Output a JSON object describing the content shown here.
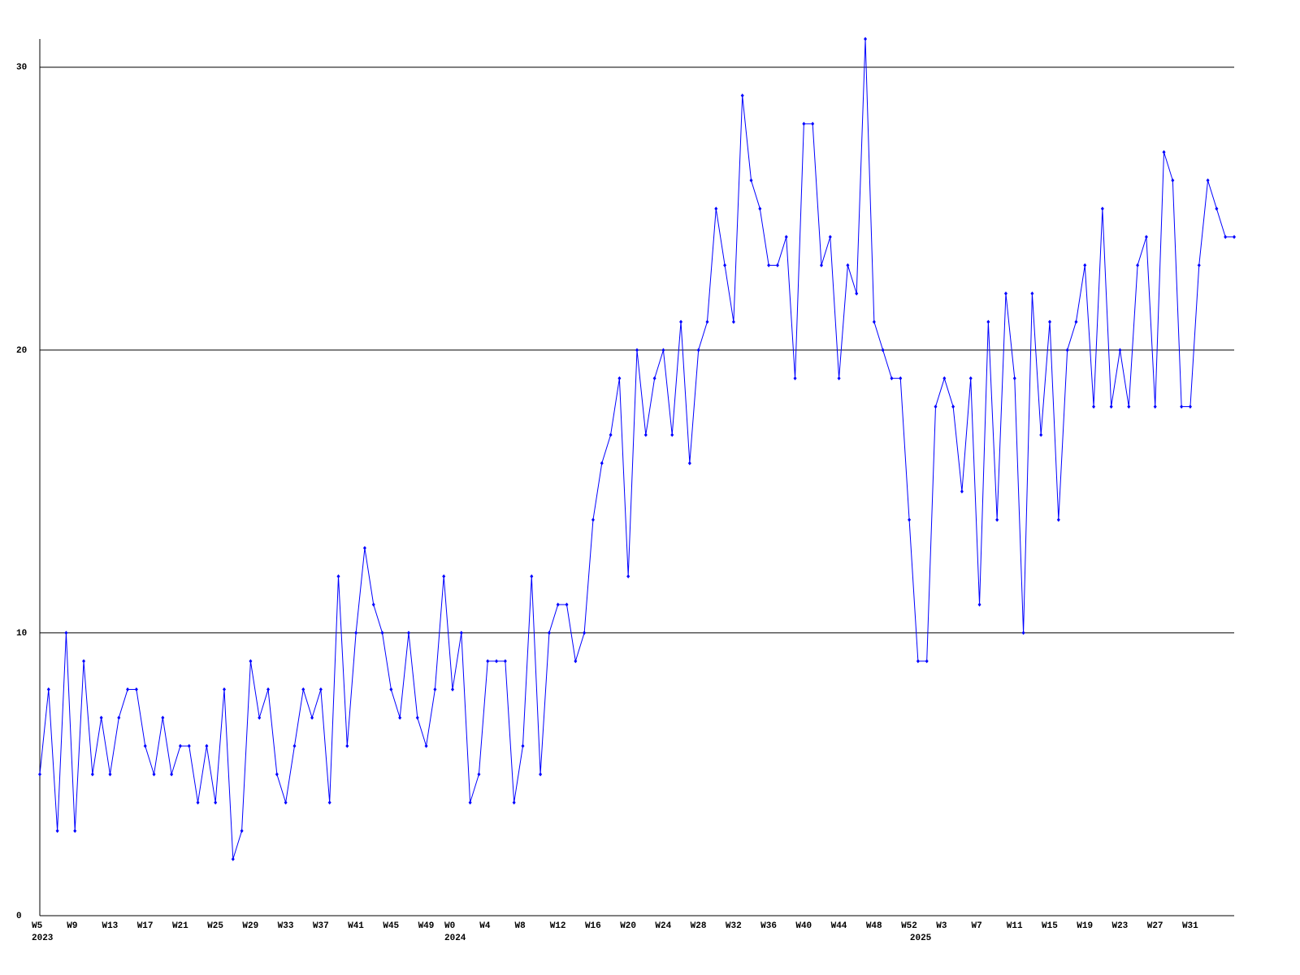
{
  "chart_data": {
    "type": "line",
    "categories": [
      "W5",
      null,
      null,
      null,
      "W9",
      null,
      null,
      null,
      "W13",
      null,
      null,
      null,
      "W17",
      null,
      null,
      null,
      "W21",
      null,
      null,
      null,
      "W25",
      null,
      null,
      null,
      "W29",
      null,
      null,
      null,
      "W33",
      null,
      null,
      null,
      "W37",
      null,
      null,
      null,
      "W41",
      null,
      null,
      null,
      "W45",
      null,
      null,
      null,
      "W49",
      null,
      null,
      "W0",
      null,
      null,
      null,
      "W4",
      null,
      null,
      null,
      "W8",
      null,
      null,
      null,
      "W12",
      null,
      null,
      null,
      "W16",
      null,
      null,
      null,
      "W20",
      null,
      null,
      null,
      "W24",
      null,
      null,
      null,
      "W28",
      null,
      null,
      null,
      "W32",
      null,
      null,
      null,
      "W36",
      null,
      null,
      null,
      "W40",
      null,
      null,
      null,
      "W44",
      null,
      null,
      null,
      "W48",
      null,
      null,
      null,
      "W52",
      null,
      null,
      null,
      "W3",
      null,
      null,
      null,
      "W7",
      null,
      null,
      null,
      "W11",
      null,
      null,
      null,
      "W15",
      null,
      null,
      null,
      "W19",
      null,
      null,
      null,
      "W23",
      null,
      null,
      null,
      "W27",
      null,
      null,
      null,
      "W31",
      null,
      null,
      null,
      null,
      null
    ],
    "year_labels": [
      "2023",
      null,
      null,
      null,
      null,
      null,
      null,
      null,
      null,
      null,
      null,
      null,
      null,
      null,
      null,
      null,
      null,
      null,
      null,
      null,
      null,
      null,
      null,
      null,
      null,
      null,
      null,
      null,
      null,
      null,
      null,
      null,
      null,
      null,
      null,
      null,
      null,
      null,
      null,
      null,
      null,
      null,
      null,
      null,
      null,
      null,
      null,
      "2024",
      null,
      null,
      null,
      null,
      null,
      null,
      null,
      null,
      null,
      null,
      null,
      null,
      null,
      null,
      null,
      null,
      null,
      null,
      null,
      null,
      null,
      null,
      null,
      null,
      null,
      null,
      null,
      null,
      null,
      null,
      null,
      null,
      null,
      null,
      null,
      null,
      null,
      null,
      null,
      null,
      null,
      null,
      null,
      null,
      null,
      null,
      null,
      null,
      null,
      null,
      null,
      null,
      "2025",
      null,
      null,
      null,
      null,
      null,
      null,
      null,
      null,
      null,
      null,
      null,
      null,
      null,
      null,
      null,
      null,
      null,
      null,
      null,
      null,
      null,
      null,
      null,
      null,
      null,
      null,
      null,
      null,
      null,
      null,
      null,
      null,
      null,
      null,
      null,
      null
    ],
    "series": [
      {
        "color": "#0000ff",
        "values": [
          5,
          8,
          3,
          10,
          3,
          9,
          5,
          7,
          5,
          7,
          8,
          8,
          6,
          5,
          7,
          5,
          6,
          6,
          4,
          6,
          4,
          8,
          2,
          3,
          9,
          7,
          8,
          5,
          4,
          6,
          8,
          7,
          8,
          4,
          12,
          6,
          10,
          13,
          11,
          10,
          8,
          7,
          10,
          7,
          6,
          8,
          12,
          8,
          10,
          4,
          5,
          9,
          9,
          9,
          4,
          6,
          12,
          5,
          10,
          11,
          11,
          9,
          10,
          14,
          16,
          17,
          19,
          12,
          20,
          17,
          19,
          20,
          17,
          21,
          16,
          20,
          21,
          25,
          23,
          21,
          29,
          26,
          25,
          23,
          23,
          24,
          19,
          28,
          28,
          23,
          24,
          19,
          23,
          22,
          31,
          21,
          20,
          19,
          19,
          14,
          9,
          9,
          18,
          19,
          18,
          15,
          19,
          11,
          21,
          14,
          22,
          19,
          10,
          22,
          17,
          21,
          14,
          20,
          21,
          23,
          18,
          25,
          18,
          20,
          18,
          23,
          24,
          18,
          27,
          26,
          18,
          18,
          23,
          26,
          25,
          24,
          24
        ]
      }
    ],
    "ylim": [
      0,
      31
    ],
    "yticks": [
      0,
      10,
      20,
      30
    ],
    "grid": true
  }
}
